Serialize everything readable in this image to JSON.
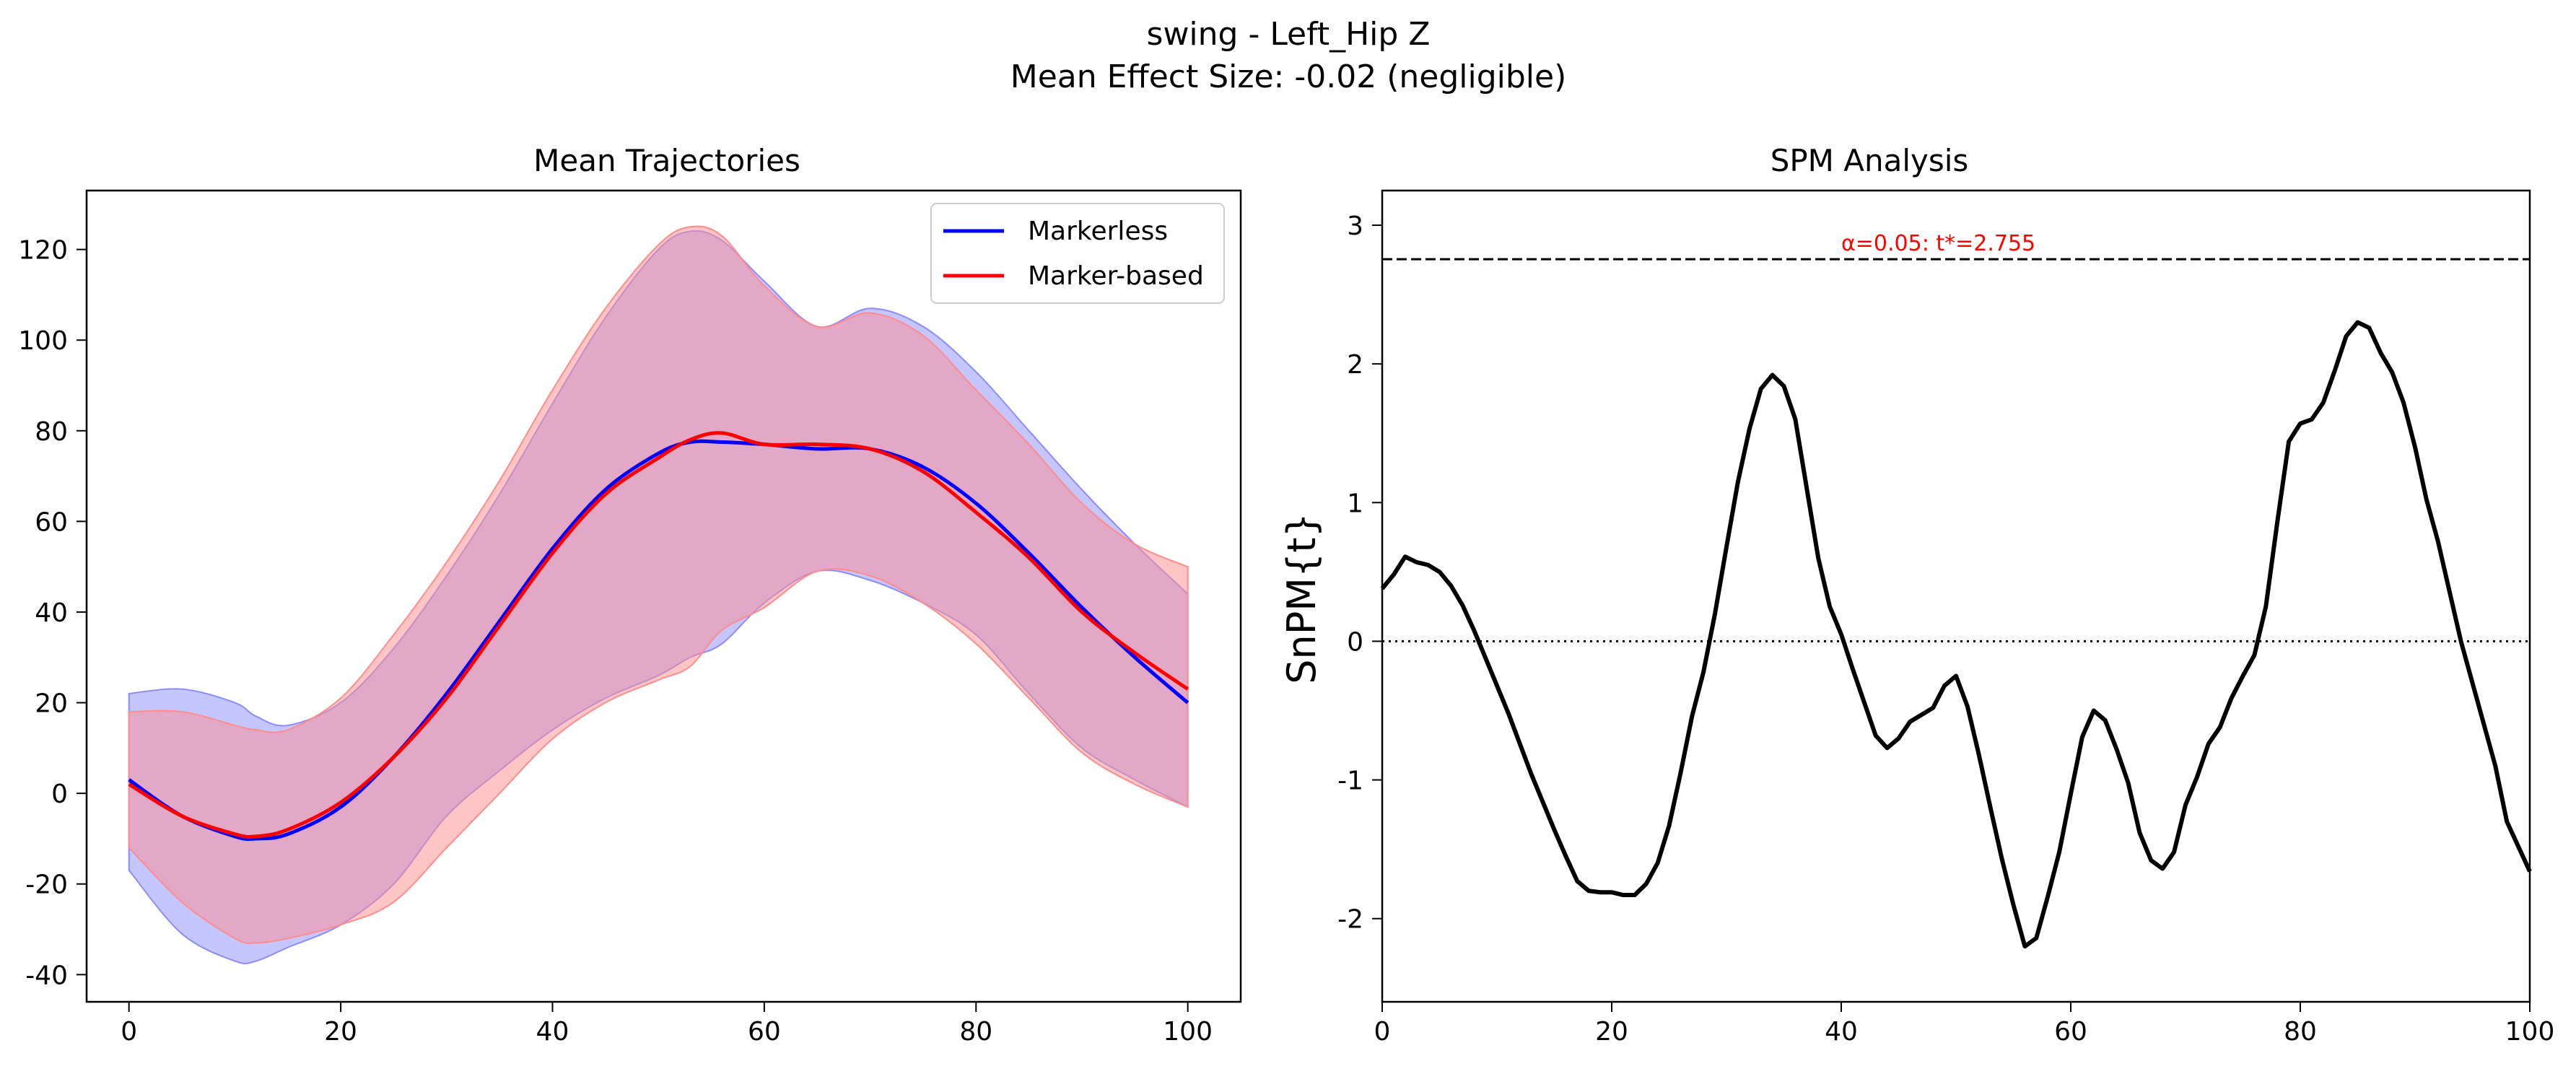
{
  "figure": {
    "title_line1": "swing - Left_Hip Z",
    "title_line2": "Mean Effect Size: -0.02 (negligible)"
  },
  "chart_data": [
    {
      "type": "line",
      "title": "Mean Trajectories",
      "xlabel": "",
      "ylabel": "",
      "xlim": [
        -4,
        105
      ],
      "ylim": [
        -46,
        133
      ],
      "xticks": [
        0,
        20,
        40,
        60,
        80,
        100
      ],
      "yticks": [
        -40,
        -20,
        0,
        20,
        40,
        60,
        80,
        100,
        120
      ],
      "grid": false,
      "legend": "top-right",
      "x": [
        0,
        5,
        10,
        12,
        15,
        20,
        25,
        30,
        35,
        40,
        45,
        50,
        53,
        56,
        60,
        65,
        70,
        75,
        80,
        85,
        90,
        95,
        100
      ],
      "series": [
        {
          "name": "Markerless",
          "color": "#0000ff",
          "fill": "#8c8cff",
          "mean": [
            3,
            -5,
            -9.5,
            -10,
            -9,
            -3,
            8,
            22,
            38,
            54,
            67,
            75,
            77.5,
            77.5,
            77,
            76,
            76,
            72,
            64,
            53,
            41,
            30,
            20
          ],
          "upper": [
            22,
            23,
            20,
            17,
            15,
            20,
            32,
            48,
            66,
            86,
            105,
            120,
            124,
            122,
            113,
            103,
            107,
            103,
            93,
            80,
            67,
            55,
            44
          ],
          "lower": [
            -17,
            -31,
            -37,
            -37,
            -34,
            -29,
            -20,
            -5,
            5,
            14,
            21,
            26,
            30,
            33,
            42,
            49,
            47,
            42,
            35,
            22,
            10,
            3,
            -3
          ]
        },
        {
          "name": "Marker-based",
          "color": "#ff0000",
          "fill": "#ff8c8c",
          "mean": [
            2,
            -5,
            -9,
            -9.5,
            -8,
            -2,
            8,
            21,
            37,
            53,
            66,
            74,
            78,
            79.5,
            77,
            77,
            76,
            71,
            62,
            52,
            40,
            31,
            23
          ],
          "upper": [
            18,
            18,
            15,
            14,
            14,
            21,
            35,
            51,
            69,
            89,
            107,
            121,
            125,
            123,
            112,
            103,
            106,
            101,
            89,
            77,
            64,
            55,
            50
          ],
          "lower": [
            -12,
            -24,
            -32,
            -33,
            -32,
            -29,
            -24,
            -12,
            0,
            12,
            20,
            25,
            28,
            36,
            41,
            49,
            48,
            42,
            33,
            21,
            9,
            2,
            -3
          ]
        }
      ]
    },
    {
      "type": "line",
      "title": "SPM Analysis",
      "xlabel": "",
      "ylabel": "SnPM{t}",
      "xlim": [
        0,
        100
      ],
      "ylim": [
        -2.6,
        3.25
      ],
      "xticks": [
        0,
        20,
        40,
        60,
        80,
        100
      ],
      "yticks": [
        -2,
        -1,
        0,
        1,
        2,
        3
      ],
      "grid": false,
      "threshold": 2.755,
      "threshold_label": "α=0.05:  t*=2.755",
      "threshold_label_color": "#ff0000",
      "x": [
        0,
        1,
        2,
        3,
        4,
        5,
        6,
        7,
        8,
        9,
        10,
        11,
        12,
        13,
        14,
        15,
        16,
        17,
        18,
        19,
        20,
        21,
        22,
        23,
        24,
        25,
        26,
        27,
        28,
        29,
        30,
        31,
        32,
        33,
        34,
        35,
        36,
        37,
        38,
        39,
        40,
        41,
        42,
        43,
        44,
        45,
        46,
        47,
        48,
        49,
        50,
        51,
        52,
        53,
        54,
        55,
        56,
        57,
        58,
        59,
        60,
        61,
        62,
        63,
        64,
        65,
        66,
        67,
        68,
        69,
        70,
        71,
        72,
        73,
        74,
        75,
        76,
        77,
        78,
        79,
        80,
        81,
        82,
        83,
        84,
        85,
        86,
        87,
        88,
        89,
        90,
        91,
        92,
        93,
        94,
        95,
        96,
        97,
        98,
        99,
        100
      ],
      "y": [
        0.38,
        0.48,
        0.61,
        0.57,
        0.55,
        0.5,
        0.4,
        0.26,
        0.08,
        -0.12,
        -0.32,
        -0.52,
        -0.74,
        -0.96,
        -1.16,
        -1.36,
        -1.55,
        -1.73,
        -1.8,
        -1.81,
        -1.81,
        -1.83,
        -1.83,
        -1.75,
        -1.6,
        -1.33,
        -0.95,
        -0.54,
        -0.22,
        0.2,
        0.68,
        1.15,
        1.53,
        1.82,
        1.92,
        1.84,
        1.6,
        1.1,
        0.6,
        0.25,
        0.05,
        -0.2,
        -0.44,
        -0.68,
        -0.77,
        -0.7,
        -0.58,
        -0.53,
        -0.48,
        -0.32,
        -0.25,
        -0.47,
        -0.82,
        -1.2,
        -1.57,
        -1.9,
        -2.2,
        -2.14,
        -1.84,
        -1.52,
        -1.1,
        -0.69,
        -0.5,
        -0.57,
        -0.78,
        -1.02,
        -1.38,
        -1.58,
        -1.64,
        -1.52,
        -1.18,
        -0.98,
        -0.74,
        -0.62,
        -0.41,
        -0.25,
        -0.1,
        0.25,
        0.86,
        1.44,
        1.57,
        1.6,
        1.72,
        1.95,
        2.2,
        2.3,
        2.26,
        2.08,
        1.94,
        1.72,
        1.4,
        1.02,
        0.72,
        0.36,
        0.0,
        -0.3,
        -0.6,
        -0.9,
        -1.3,
        -1.48,
        -1.66
      ],
      "series": [
        {
          "name": "",
          "color": "#000000"
        }
      ]
    }
  ]
}
